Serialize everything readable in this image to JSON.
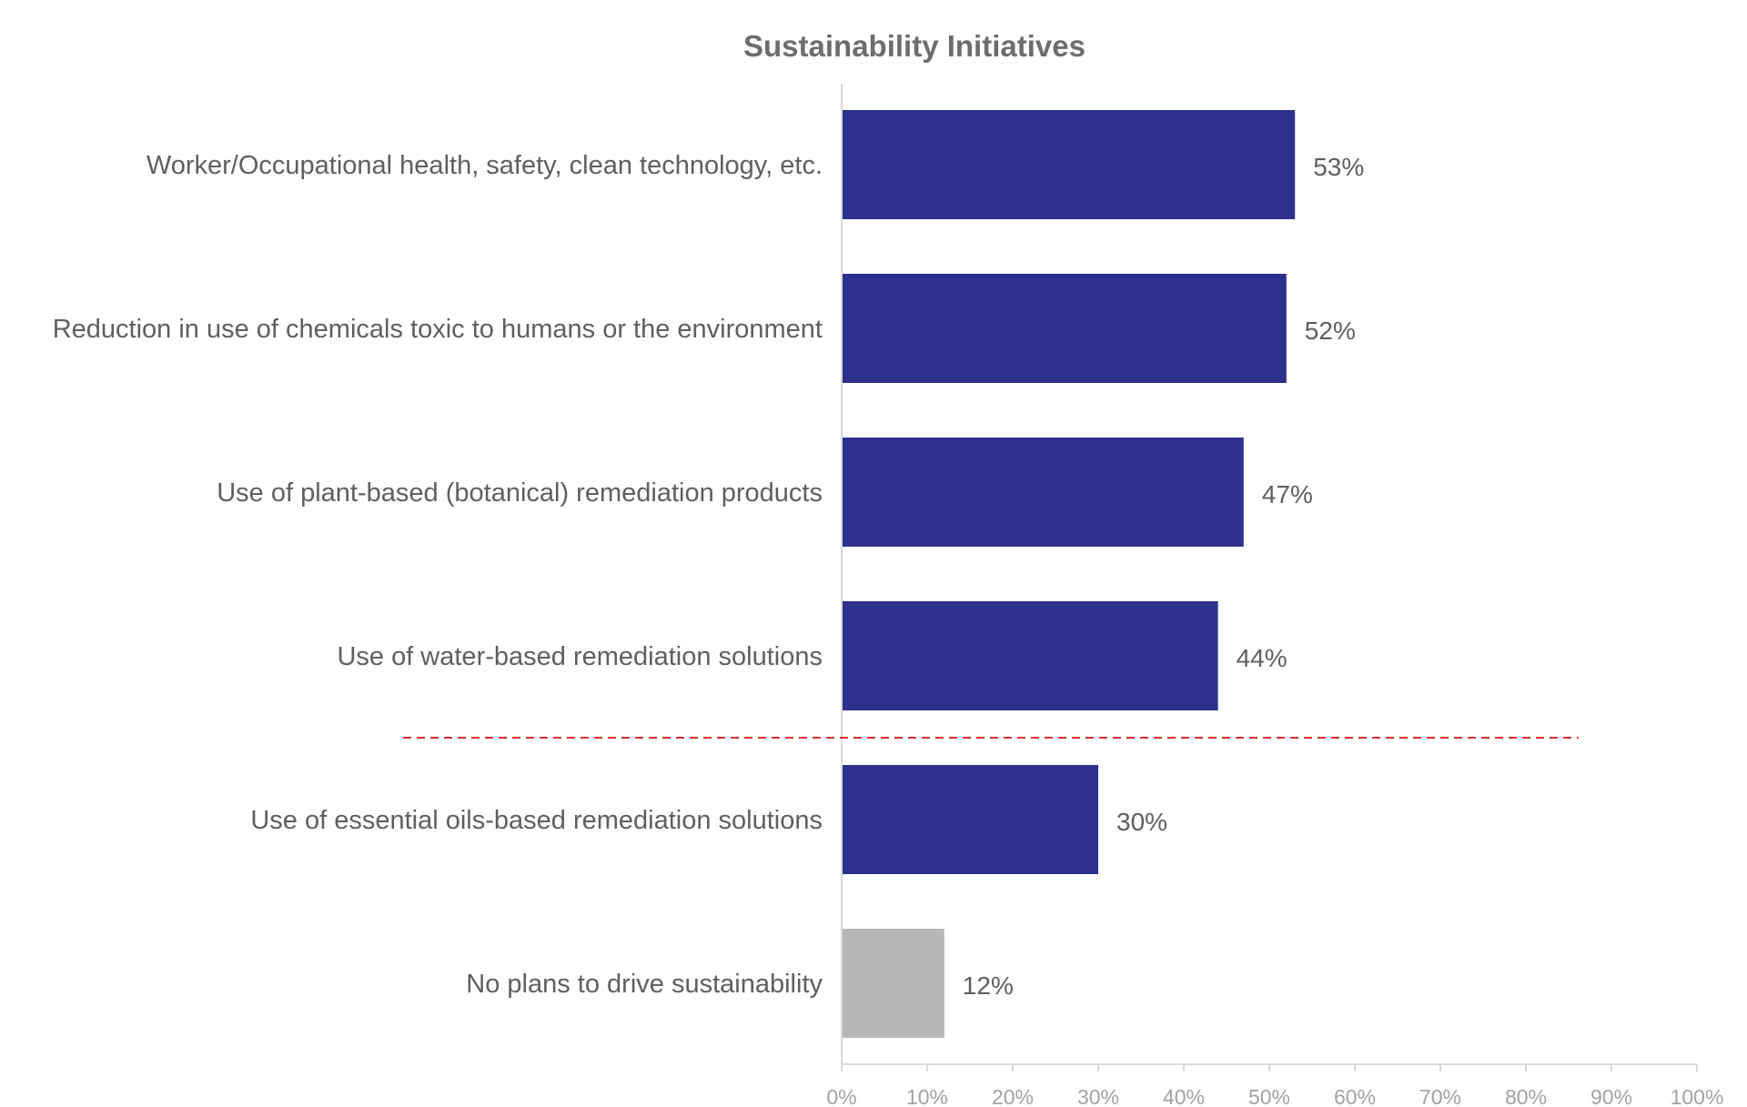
{
  "chart_data": {
    "type": "bar",
    "orientation": "horizontal",
    "title": "Sustainability Initiatives",
    "categories": [
      "Worker/Occupational health, safety, clean technology, etc.",
      "Reduction in use of chemicals toxic to humans or the environment",
      "Use of plant-based (botanical) remediation products",
      "Use of water-based remediation solutions",
      "Use of essential oils-based remediation solutions",
      "No plans to drive sustainability"
    ],
    "values": [
      53,
      52,
      47,
      44,
      30,
      12
    ],
    "data_labels": [
      "53%",
      "52%",
      "47%",
      "44%",
      "30%",
      "12%"
    ],
    "bar_colors": [
      "#2e318b",
      "#2e318b",
      "#2e318b",
      "#2e318b",
      "#2e318b",
      "#b7b7b7"
    ],
    "xlim": [
      0,
      100
    ],
    "x_ticks": [
      "0%",
      "10%",
      "20%",
      "30%",
      "40%",
      "50%",
      "60%",
      "70%",
      "80%",
      "90%",
      "100%"
    ],
    "xlabel": "",
    "ylabel": "",
    "grid": false,
    "legend": "none",
    "reference_line": {
      "style": "dashed",
      "color": "#d9302c",
      "between_categories": [
        "Use of water-based remediation solutions",
        "Use of essential oils-based remediation solutions"
      ]
    }
  }
}
